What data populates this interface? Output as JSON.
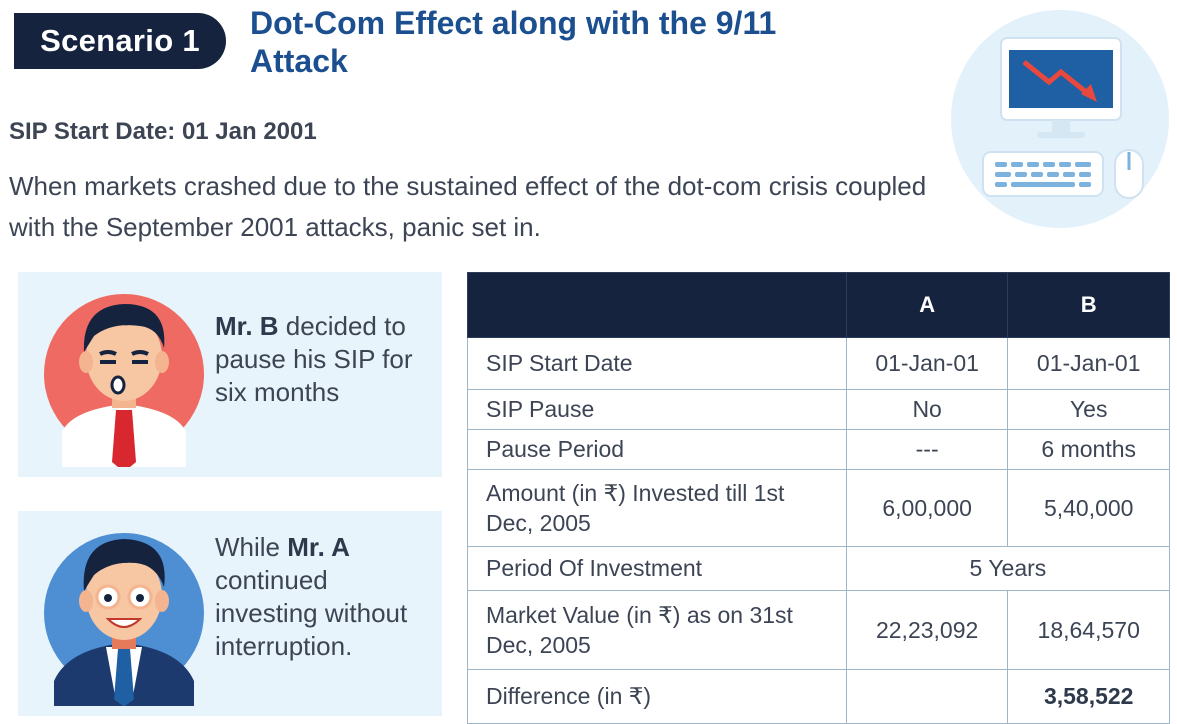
{
  "scenario_badge": "Scenario 1",
  "title": "Dot-Com Effect along with the 9/11 Attack",
  "sip_start": "SIP Start Date: 01 Jan 2001",
  "description": "When markets crashed due to the sustained effect of the dot-com crisis coupled with the September 2001 attacks, panic set in.",
  "mr_b": {
    "name": "Mr. B",
    "text": " decided to pause his SIP for six months"
  },
  "mr_a": {
    "prefix": "While ",
    "name": "Mr. A",
    "text": " continued investing without interruption."
  },
  "table": {
    "headers": [
      "",
      "A",
      "B"
    ],
    "rows": [
      {
        "label": "SIP Start Date",
        "a": "01-Jan-01",
        "b": "01-Jan-01"
      },
      {
        "label": "SIP Pause",
        "a": "No",
        "b": "Yes"
      },
      {
        "label": "Pause Period",
        "a": "---",
        "b": "6 months"
      },
      {
        "label": "Amount (in ₹) Invested till 1st Dec, 2005",
        "a": "6,00,000",
        "b": "5,40,000"
      },
      {
        "label": "Period Of Investment",
        "span": "5 Years"
      },
      {
        "label": "Market Value (in ₹) as on 31st Dec, 2005",
        "a": "22,23,092",
        "b": "18,64,570"
      },
      {
        "label": "Difference (in ₹)",
        "a": "",
        "b": "3,58,522"
      }
    ]
  },
  "colors": {
    "navy": "#16233f",
    "title_blue": "#1b4f8f",
    "card_bg": "#e8f4fc",
    "red_circle": "#ee6a62",
    "blue_circle": "#4e8ed3"
  }
}
